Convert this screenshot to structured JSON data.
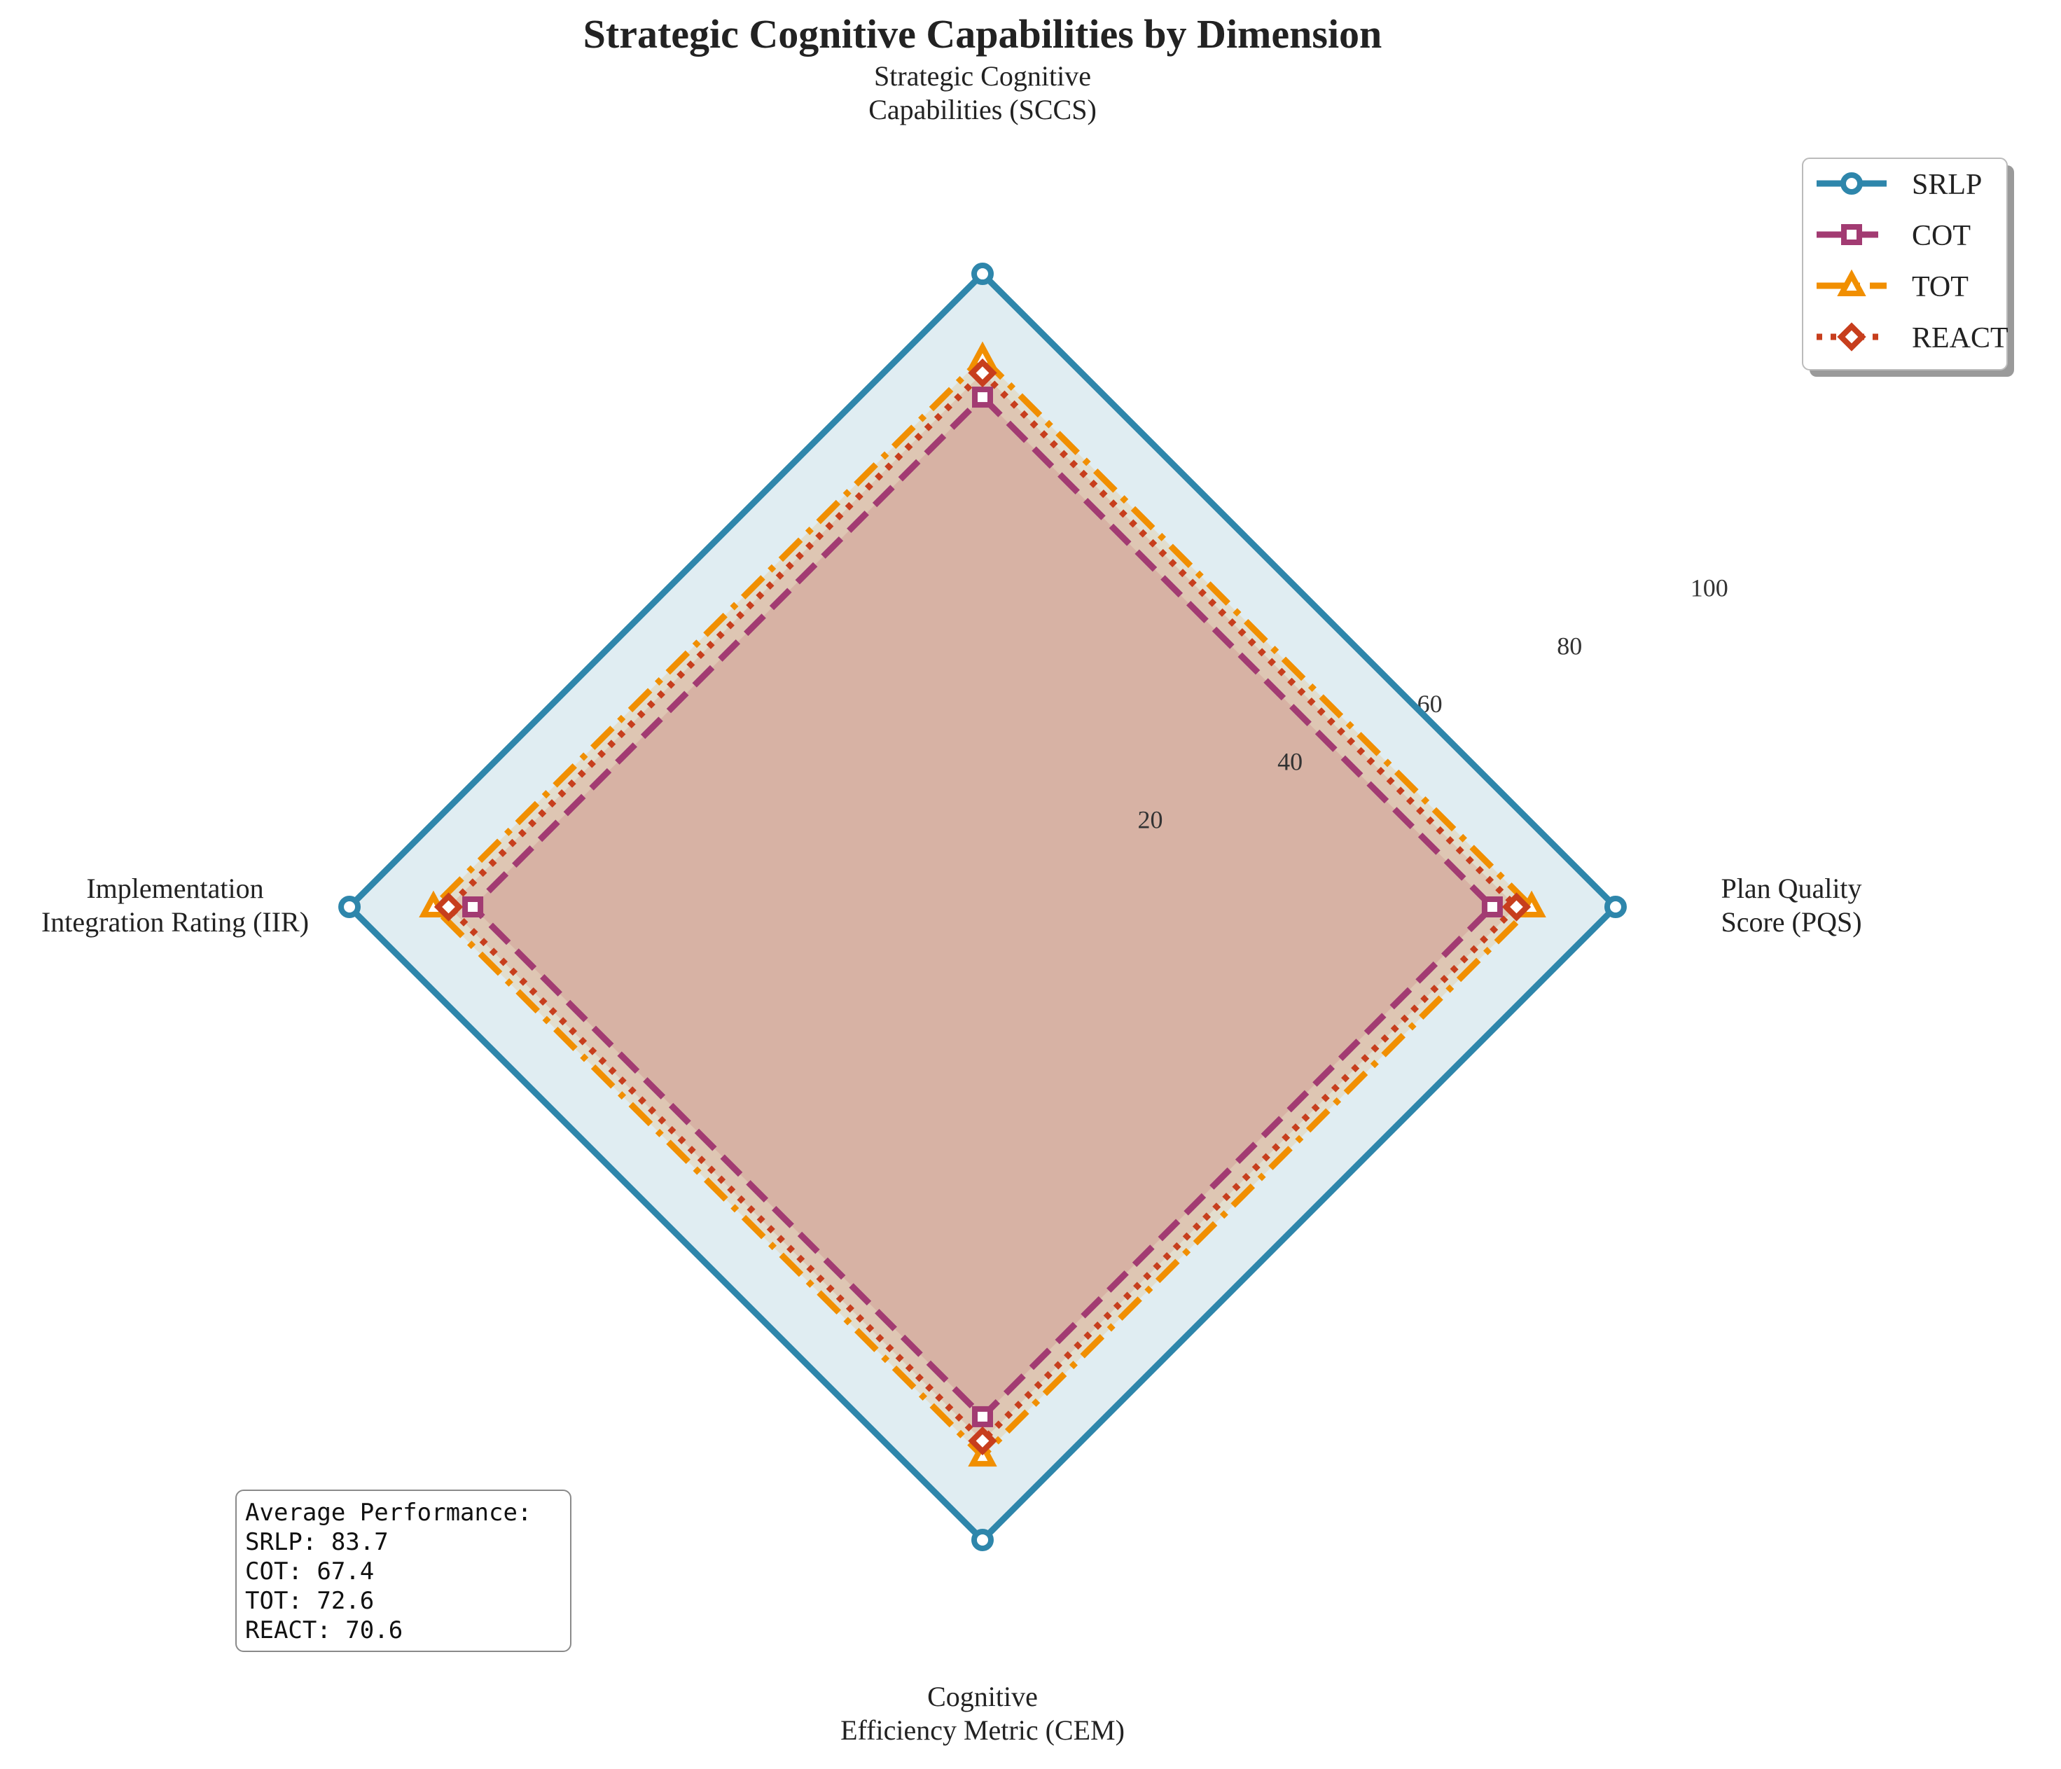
{
  "chart_data": {
    "type": "radar",
    "title": "Strategic Cognitive Capabilities by Dimension",
    "axes": [
      {
        "name": "Strategic Cognitive\nCapabilities (SCCS)"
      },
      {
        "name": "Plan Quality\nScore (PQS)"
      },
      {
        "name": "Cognitive\nEfficiency Metric (CEM)"
      },
      {
        "name": "Implementation\nIntegration Rating (IIR)"
      }
    ],
    "rlim": [
      0,
      100
    ],
    "rticks": [
      "20",
      "40",
      "60",
      "80",
      "100"
    ],
    "series": [
      {
        "name": "SRLP",
        "values": [
          83.7,
          83.7,
          83.7,
          83.7
        ],
        "color": "#2E86AB",
        "fill": "#2E86AB",
        "dash": "solid",
        "marker": "circle"
      },
      {
        "name": "COT",
        "values": [
          67.4,
          67.4,
          67.4,
          67.4
        ],
        "color": "#A23B72",
        "fill": "#A23B72",
        "dash": "dashed",
        "marker": "square"
      },
      {
        "name": "TOT",
        "values": [
          72.6,
          72.6,
          72.6,
          72.6
        ],
        "color": "#F18F01",
        "fill": "#F18F01",
        "dash": "dashdot",
        "marker": "triangle"
      },
      {
        "name": "REACT",
        "values": [
          70.6,
          70.6,
          70.6,
          70.6
        ],
        "color": "#C73E1D",
        "fill": "#C73E1D",
        "dash": "dotted",
        "marker": "diamond"
      }
    ],
    "legend": "top-right",
    "grid": false
  },
  "stats": {
    "header": "Average Performance:",
    "lines": [
      "SRLP: 83.7",
      "COT: 67.4",
      "TOT: 72.6",
      "REACT: 70.6"
    ]
  }
}
